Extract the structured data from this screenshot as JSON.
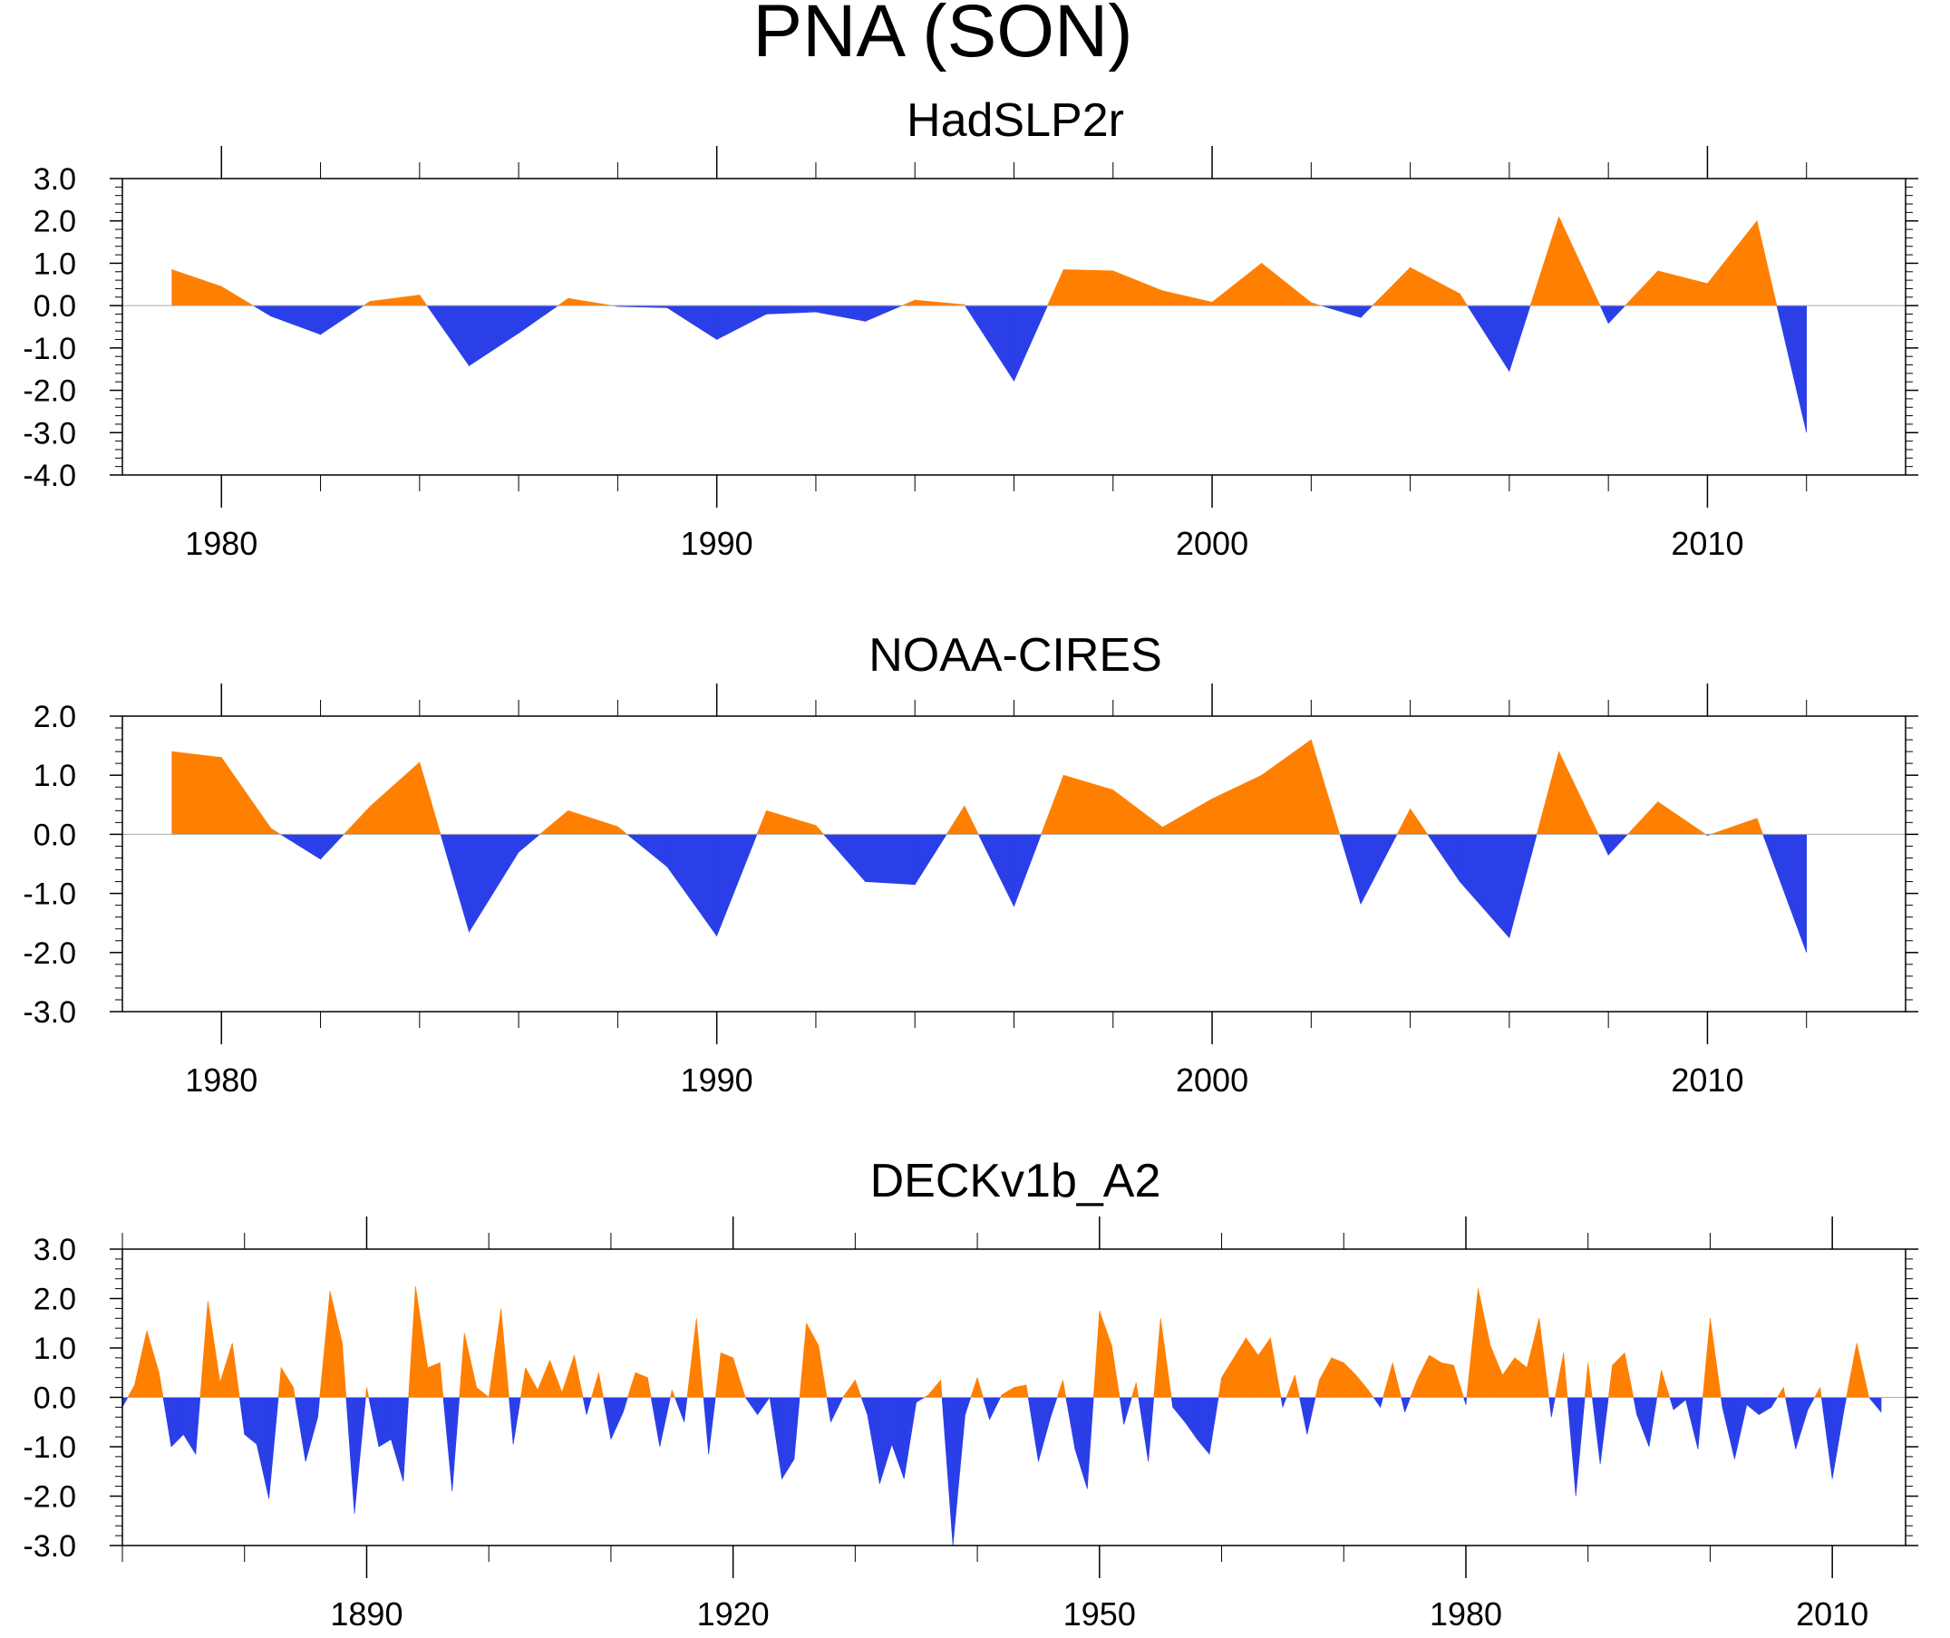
{
  "title": "PNA (SON)",
  "colors": {
    "positive": "#ff7f00",
    "negative": "#2b3fe8",
    "zero_line": "#aaaaaa"
  },
  "chart_data": [
    {
      "type": "area",
      "title": "HadSLP2r",
      "xlabel": "",
      "ylabel": "",
      "xlim": [
        1978,
        2014
      ],
      "ylim": [
        -4.0,
        3.0
      ],
      "yticks": [
        3.0,
        2.0,
        1.0,
        0.0,
        -1.0,
        -2.0,
        -3.0,
        -4.0
      ],
      "ytick_labels": [
        "3.0",
        "2.0",
        "1.0",
        "0.0",
        "-1.0",
        "-2.0",
        "-3.0",
        "-4.0"
      ],
      "xticks": [
        1980,
        1990,
        2000,
        2010
      ],
      "xtick_labels": [
        "1980",
        "1990",
        "2000",
        "2010"
      ],
      "x_minor": [
        1982,
        1984,
        1986,
        1988,
        1992,
        1994,
        1996,
        1998,
        2002,
        2004,
        2006,
        2008,
        2012
      ],
      "x": [
        1979,
        1980,
        1981,
        1982,
        1983,
        1984,
        1985,
        1986,
        1987,
        1988,
        1989,
        1990,
        1991,
        1992,
        1993,
        1994,
        1995,
        1996,
        1997,
        1998,
        1999,
        2000,
        2001,
        2002,
        2003,
        2004,
        2005,
        2006,
        2007,
        2008,
        2009,
        2010,
        2011,
        2012
      ],
      "values": [
        0.85,
        0.45,
        -0.25,
        -0.68,
        0.1,
        0.25,
        -1.42,
        -0.65,
        0.17,
        -0.02,
        -0.05,
        -0.8,
        -0.2,
        -0.15,
        -0.37,
        0.13,
        0.02,
        -1.78,
        0.85,
        0.82,
        0.35,
        0.08,
        1.0,
        0.07,
        -0.28,
        0.9,
        0.28,
        -1.55,
        2.1,
        -0.42,
        0.82,
        0.52,
        2.0,
        -3.0
      ]
    },
    {
      "type": "area",
      "title": "NOAA-CIRES",
      "xlabel": "",
      "ylabel": "",
      "xlim": [
        1978,
        2014
      ],
      "ylim": [
        -3.0,
        2.0
      ],
      "yticks": [
        2.0,
        1.0,
        0.0,
        -1.0,
        -2.0,
        -3.0
      ],
      "ytick_labels": [
        "2.0",
        "1.0",
        "0.0",
        "-1.0",
        "-2.0",
        "-3.0"
      ],
      "xticks": [
        1980,
        1990,
        2000,
        2010
      ],
      "xtick_labels": [
        "1980",
        "1990",
        "2000",
        "2010"
      ],
      "x_minor": [
        1982,
        1984,
        1986,
        1988,
        1992,
        1994,
        1996,
        1998,
        2002,
        2004,
        2006,
        2008,
        2012
      ],
      "x": [
        1979,
        1980,
        1981,
        1982,
        1983,
        1984,
        1985,
        1986,
        1987,
        1988,
        1989,
        1990,
        1991,
        1992,
        1993,
        1994,
        1995,
        1996,
        1997,
        1998,
        1999,
        2000,
        2001,
        2002,
        2003,
        2004,
        2005,
        2006,
        2007,
        2008,
        2009,
        2010,
        2011,
        2012
      ],
      "values": [
        1.4,
        1.3,
        0.1,
        -0.42,
        0.47,
        1.22,
        -1.65,
        -0.3,
        0.4,
        0.13,
        -0.55,
        -1.72,
        0.4,
        0.15,
        -0.8,
        -0.85,
        0.48,
        -1.22,
        1.0,
        0.75,
        0.12,
        0.6,
        1.0,
        1.6,
        -1.18,
        0.43,
        -0.8,
        -1.75,
        1.4,
        -0.35,
        0.55,
        -0.02,
        0.27,
        -2.0
      ]
    },
    {
      "type": "area",
      "title": "DECKv1b_A2",
      "xlabel": "",
      "ylabel": "",
      "xlim": [
        1870,
        2016
      ],
      "ylim": [
        -3.0,
        3.0
      ],
      "yticks": [
        3.0,
        2.0,
        1.0,
        0.0,
        -1.0,
        -2.0,
        -3.0
      ],
      "ytick_labels": [
        "3.0",
        "2.0",
        "1.0",
        "0.0",
        "-1.0",
        "-2.0",
        "-3.0"
      ],
      "xticks": [
        1890,
        1920,
        1950,
        1980,
        2010
      ],
      "xtick_labels": [
        "1890",
        "1920",
        "1950",
        "1980",
        "2010"
      ],
      "x_minor": [
        1870,
        1880,
        1900,
        1910,
        1930,
        1940,
        1960,
        1970,
        1990,
        2000
      ],
      "x": [
        1870,
        1871,
        1872,
        1873,
        1874,
        1875,
        1876,
        1877,
        1878,
        1879,
        1880,
        1881,
        1882,
        1883,
        1884,
        1885,
        1886,
        1887,
        1888,
        1889,
        1890,
        1891,
        1892,
        1893,
        1894,
        1895,
        1896,
        1897,
        1898,
        1899,
        1900,
        1901,
        1902,
        1903,
        1904,
        1905,
        1906,
        1907,
        1908,
        1909,
        1910,
        1911,
        1912,
        1913,
        1914,
        1915,
        1916,
        1917,
        1918,
        1919,
        1920,
        1921,
        1922,
        1923,
        1924,
        1925,
        1926,
        1927,
        1928,
        1929,
        1930,
        1931,
        1932,
        1933,
        1934,
        1935,
        1936,
        1937,
        1938,
        1939,
        1940,
        1941,
        1942,
        1943,
        1944,
        1945,
        1946,
        1947,
        1948,
        1949,
        1950,
        1951,
        1952,
        1953,
        1954,
        1955,
        1956,
        1957,
        1958,
        1959,
        1960,
        1961,
        1962,
        1963,
        1964,
        1965,
        1966,
        1967,
        1968,
        1969,
        1970,
        1971,
        1972,
        1973,
        1974,
        1975,
        1976,
        1977,
        1978,
        1979,
        1980,
        1981,
        1982,
        1983,
        1984,
        1985,
        1986,
        1987,
        1988,
        1989,
        1990,
        1991,
        1992,
        1993,
        1994,
        1995,
        1996,
        1997,
        1998,
        1999,
        2000,
        2001,
        2002,
        2003,
        2004,
        2005,
        2006,
        2007,
        2008,
        2009,
        2010,
        2011,
        2012,
        2013,
        2014
      ],
      "values": [
        -0.2,
        0.25,
        1.35,
        0.5,
        -1.0,
        -0.75,
        -1.15,
        1.95,
        0.3,
        1.1,
        -0.75,
        -0.95,
        -2.05,
        0.6,
        0.2,
        -1.3,
        -0.4,
        2.15,
        1.1,
        -2.35,
        0.2,
        -1.0,
        -0.85,
        -1.7,
        2.25,
        0.6,
        0.7,
        -1.9,
        1.3,
        0.2,
        0.0,
        1.8,
        -0.95,
        0.6,
        0.15,
        0.75,
        0.1,
        0.85,
        -0.35,
        0.5,
        -0.85,
        -0.3,
        0.5,
        0.4,
        -1.0,
        0.15,
        -0.5,
        1.6,
        -1.15,
        0.9,
        0.8,
        0.0,
        -0.35,
        0.0,
        -1.65,
        -1.25,
        1.5,
        1.05,
        -0.5,
        0.0,
        0.35,
        -0.35,
        -1.75,
        -0.95,
        -1.65,
        -0.1,
        0.05,
        0.35,
        -3.0,
        -0.35,
        0.4,
        -0.45,
        0.05,
        0.2,
        0.25,
        -1.3,
        -0.4,
        0.35,
        -1.05,
        -1.85,
        1.75,
        1.05,
        -0.55,
        0.3,
        -1.3,
        1.6,
        -0.2,
        -0.5,
        -0.85,
        -1.15,
        0.4,
        0.8,
        1.2,
        0.85,
        1.2,
        -0.2,
        0.45,
        -0.75,
        0.35,
        0.8,
        0.7,
        0.45,
        0.15,
        -0.2,
        0.7,
        -0.3,
        0.35,
        0.85,
        0.7,
        0.65,
        -0.15,
        2.2,
        1.05,
        0.45,
        0.8,
        0.6,
        1.6,
        -0.4,
        0.9,
        -2.0,
        0.7,
        -1.35,
        0.65,
        0.9,
        -0.35,
        -1.0,
        0.55,
        -0.25,
        -0.05,
        -1.05,
        1.6,
        -0.2,
        -1.25,
        -0.15,
        -0.35,
        -0.2,
        0.2,
        -1.05,
        -0.25,
        0.2,
        -1.65,
        -0.2,
        1.1,
        0.0,
        -0.3
      ]
    }
  ]
}
